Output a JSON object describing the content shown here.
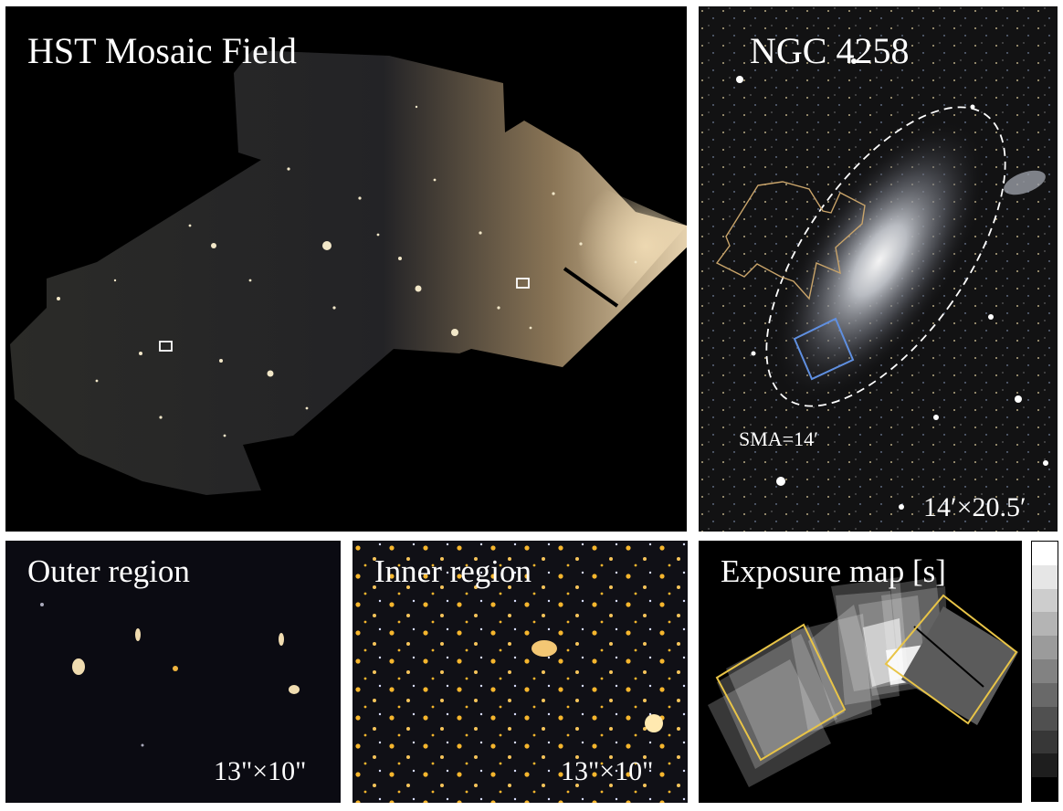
{
  "panels": {
    "mosaic": {
      "title": "HST Mosaic Field"
    },
    "galaxy": {
      "title": "NGC 4258",
      "ellipse_label": "SMA=14′",
      "scale_label": "14′×20.5′"
    },
    "outer": {
      "title": "Outer region",
      "scale_label": "13\"×10\""
    },
    "inner": {
      "title": "Inner region",
      "scale_label": "13\"×10\""
    },
    "exposure": {
      "title": "Exposure map [s]"
    }
  },
  "colorbar": {
    "levels": [
      "#ffffff",
      "#e6e6e6",
      "#cdcdcd",
      "#b4b4b4",
      "#9b9b9b",
      "#828282",
      "#696969",
      "#505050",
      "#373737",
      "#1e1e1e",
      "#000000"
    ]
  },
  "colors": {
    "footprint_yellow": "#e8c447",
    "footprint_tan": "#c9a46a",
    "footprint_blue": "#5f8fe0",
    "ellipse": "#ffffff"
  }
}
